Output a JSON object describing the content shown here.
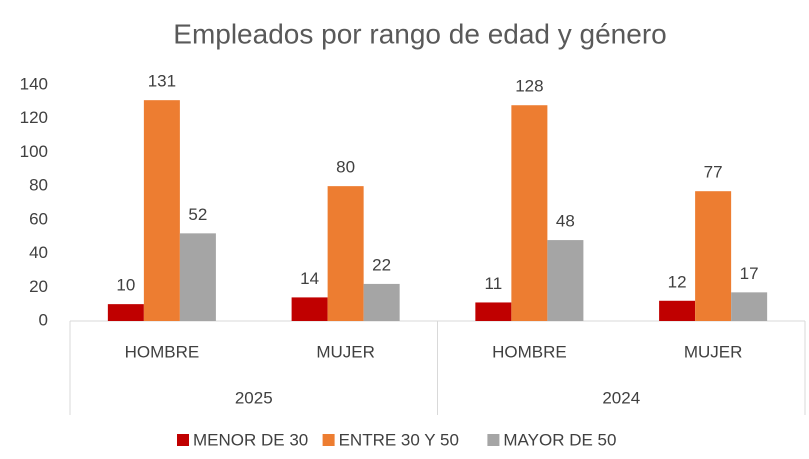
{
  "chart_data": {
    "type": "bar",
    "title": "Empleados por rango de edad y género",
    "categories": [
      "HOMBRE",
      "MUJER",
      "HOMBRE",
      "MUJER"
    ],
    "category_groups": [
      "2025",
      "2024"
    ],
    "series": [
      {
        "name": "MENOR DE 30",
        "color": "#c00000",
        "values": [
          10,
          14,
          11,
          12
        ]
      },
      {
        "name": "ENTRE 30 Y 50",
        "color": "#ed7d31",
        "values": [
          131,
          80,
          128,
          77
        ]
      },
      {
        "name": "MAYOR DE 50",
        "color": "#a5a5a5",
        "values": [
          52,
          22,
          48,
          17
        ]
      }
    ],
    "ylim": [
      0,
      140
    ],
    "yticks": [
      0,
      20,
      40,
      60,
      80,
      100,
      120,
      140
    ],
    "grid": false,
    "legend": "bottom"
  }
}
